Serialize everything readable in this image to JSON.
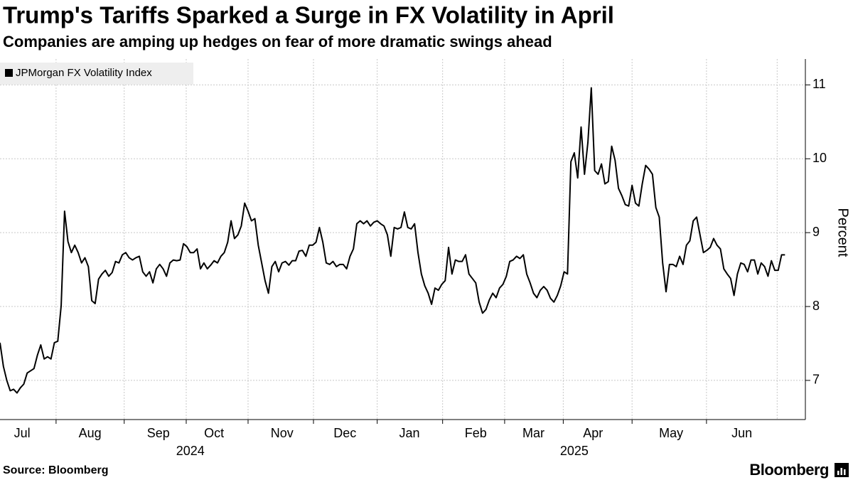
{
  "chart_data": {
    "type": "line",
    "title": "Trump's Tariffs Sparked a Surge in FX Volatility in April",
    "subtitle": "Companies are amping up hedges on fear of more dramatic swings ahead",
    "y_axis_label": "Percent",
    "source": "Source: Bloomberg",
    "brand": "Bloomberg",
    "legend": "top-left",
    "grid": true,
    "series": [
      {
        "name": "JPMorgan FX Volatility Index",
        "color": "#000000",
        "values": [
          7.51,
          7.19,
          7.0,
          6.86,
          6.88,
          6.83,
          6.9,
          6.95,
          7.1,
          7.13,
          7.16,
          7.34,
          7.48,
          7.29,
          7.32,
          7.29,
          7.51,
          7.53,
          8.01,
          9.29,
          8.88,
          8.73,
          8.83,
          8.73,
          8.59,
          8.66,
          8.54,
          8.08,
          8.04,
          8.37,
          8.44,
          8.49,
          8.41,
          8.46,
          8.61,
          8.59,
          8.7,
          8.73,
          8.66,
          8.63,
          8.66,
          8.68,
          8.47,
          8.41,
          8.47,
          8.32,
          8.51,
          8.57,
          8.51,
          8.41,
          8.59,
          8.63,
          8.62,
          8.63,
          8.85,
          8.81,
          8.73,
          8.73,
          8.78,
          8.51,
          8.59,
          8.51,
          8.56,
          8.62,
          8.59,
          8.68,
          8.73,
          8.87,
          9.16,
          8.92,
          8.97,
          9.09,
          9.4,
          9.29,
          9.16,
          9.19,
          8.83,
          8.59,
          8.35,
          8.18,
          8.54,
          8.61,
          8.47,
          8.59,
          8.61,
          8.56,
          8.62,
          8.62,
          8.75,
          8.76,
          8.68,
          8.83,
          8.83,
          8.87,
          9.07,
          8.87,
          8.59,
          8.57,
          8.61,
          8.54,
          8.57,
          8.57,
          8.51,
          8.68,
          8.78,
          9.12,
          9.16,
          9.12,
          9.16,
          9.09,
          9.14,
          9.16,
          9.12,
          9.09,
          8.97,
          8.68,
          9.07,
          9.05,
          9.07,
          9.28,
          9.07,
          9.05,
          9.12,
          8.73,
          8.44,
          8.28,
          8.18,
          8.03,
          8.25,
          8.22,
          8.3,
          8.35,
          8.8,
          8.44,
          8.63,
          8.61,
          8.61,
          8.7,
          8.44,
          8.38,
          8.32,
          8.06,
          7.91,
          7.96,
          8.09,
          8.18,
          8.12,
          8.25,
          8.3,
          8.41,
          8.61,
          8.63,
          8.68,
          8.65,
          8.7,
          8.44,
          8.32,
          8.18,
          8.12,
          8.22,
          8.27,
          8.22,
          8.11,
          8.06,
          8.15,
          8.28,
          8.47,
          8.44,
          9.96,
          10.08,
          9.74,
          10.43,
          9.79,
          10.22,
          10.96,
          9.84,
          9.79,
          9.93,
          9.66,
          9.69,
          10.17,
          9.98,
          9.6,
          9.5,
          9.38,
          9.36,
          9.64,
          9.4,
          9.36,
          9.66,
          9.91,
          9.86,
          9.79,
          9.34,
          9.21,
          8.59,
          8.2,
          8.57,
          8.57,
          8.54,
          8.68,
          8.57,
          8.83,
          8.89,
          9.16,
          9.21,
          8.97,
          8.73,
          8.76,
          8.8,
          8.92,
          8.83,
          8.78,
          8.51,
          8.44,
          8.38,
          8.15,
          8.44,
          8.59,
          8.57,
          8.47,
          8.63,
          8.63,
          8.44,
          8.59,
          8.54,
          8.41,
          8.62,
          8.49,
          8.49,
          8.7,
          8.7
        ]
      }
    ],
    "xlim": [
      0,
      237
    ],
    "xticks": [
      {
        "value": 6.5,
        "label": "Jul"
      },
      {
        "value": 26.5,
        "label": "Aug"
      },
      {
        "value": 46.6,
        "label": "Sep"
      },
      {
        "value": 63,
        "label": "Oct"
      },
      {
        "value": 83,
        "label": "Nov"
      },
      {
        "value": 101.5,
        "label": "Dec"
      },
      {
        "value": 120.5,
        "label": "Jan"
      },
      {
        "value": 140,
        "label": "Feb"
      },
      {
        "value": 157,
        "label": "Mar"
      },
      {
        "value": 174.5,
        "label": "Apr"
      },
      {
        "value": 197.5,
        "label": "May"
      },
      {
        "value": 218.3,
        "label": "Jun"
      }
    ],
    "year_ticks": [
      {
        "value": 56,
        "label": "2024"
      },
      {
        "value": 169,
        "label": "2025"
      }
    ],
    "ylim": [
      6.47,
      11.35
    ],
    "yticks": [
      7,
      8,
      9,
      10,
      11
    ]
  }
}
